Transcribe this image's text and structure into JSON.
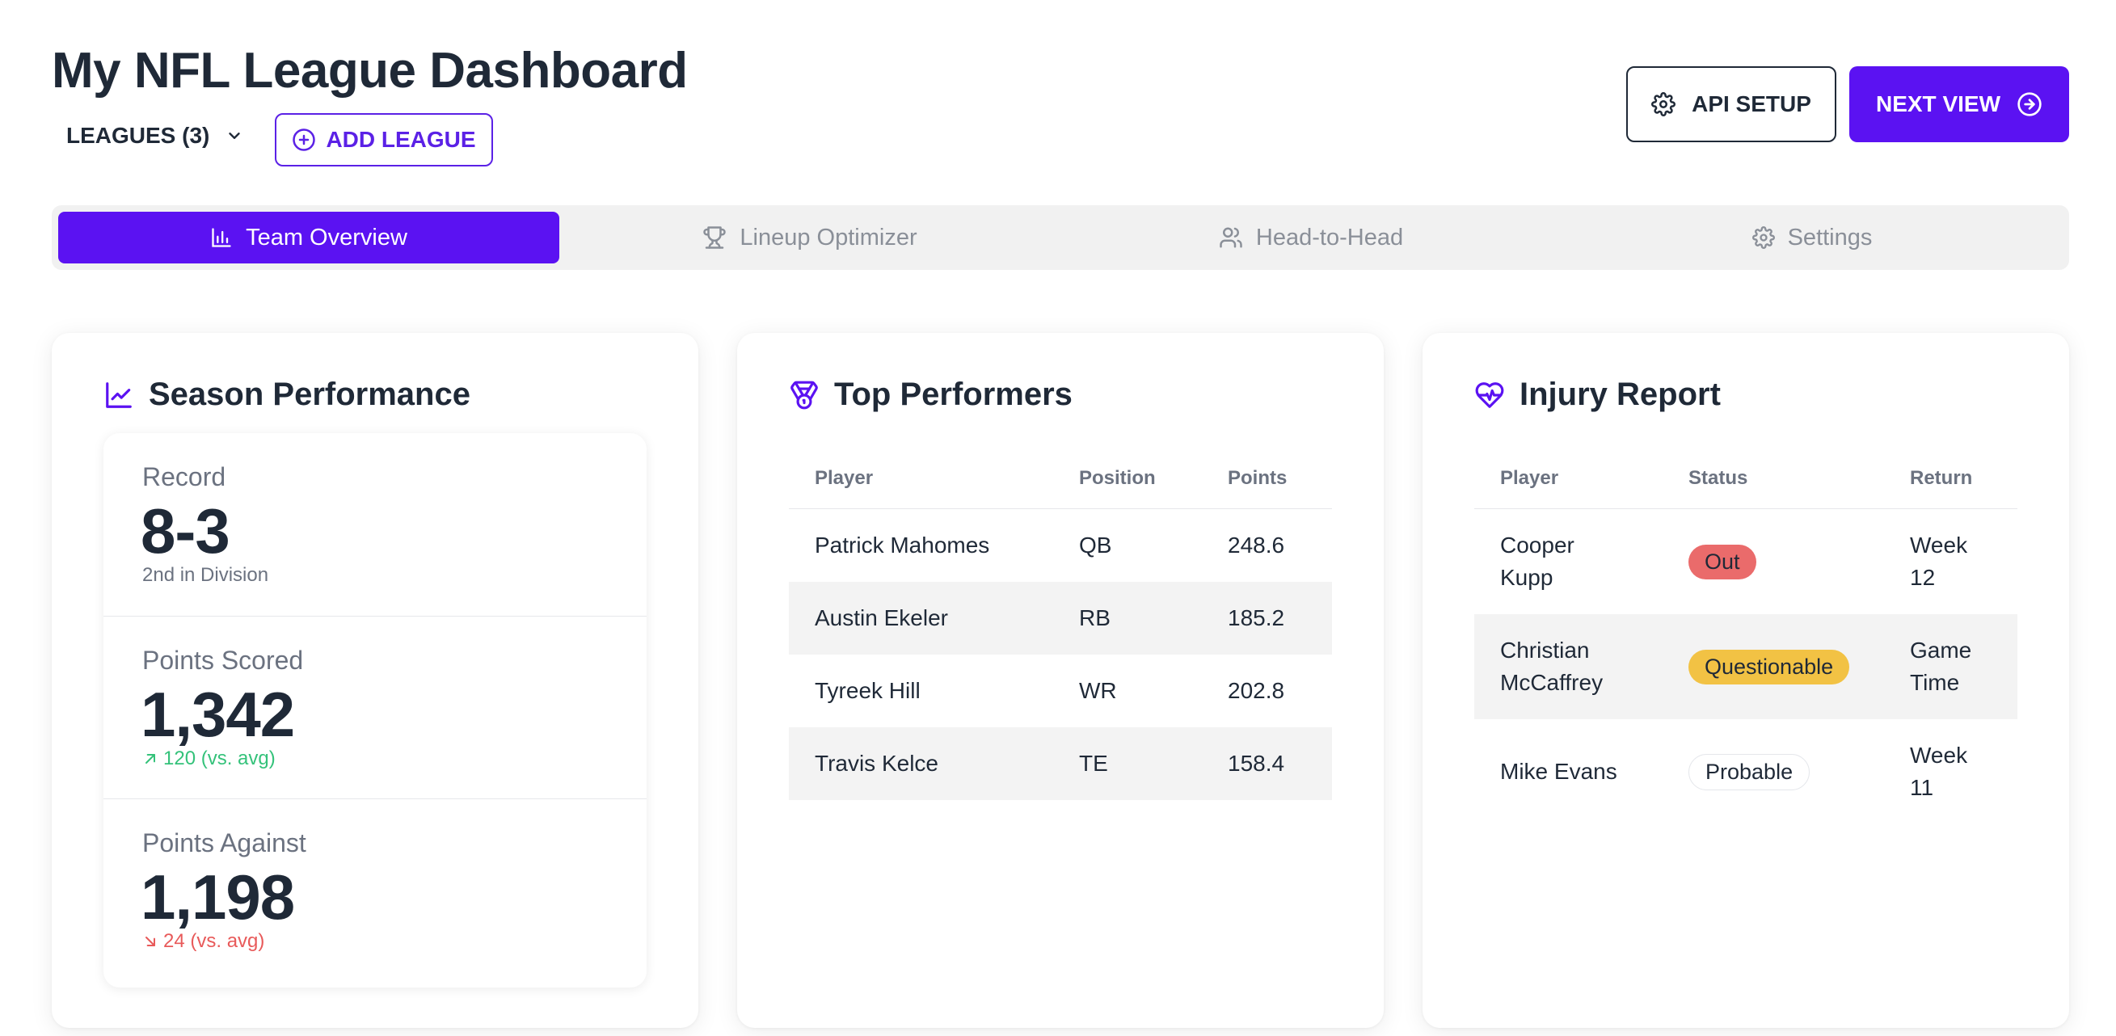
{
  "header": {
    "title": "My NFL League Dashboard",
    "leagues_label": "LEAGUES (3)",
    "add_league_label": "ADD LEAGUE",
    "api_setup_label": "API SETUP",
    "next_view_label": "NEXT VIEW"
  },
  "tabs": [
    {
      "label": "Team Overview",
      "icon": "bar-chart-icon",
      "active": true
    },
    {
      "label": "Lineup Optimizer",
      "icon": "trophy-icon",
      "active": false
    },
    {
      "label": "Head-to-Head",
      "icon": "users-icon",
      "active": false
    },
    {
      "label": "Settings",
      "icon": "gear-icon",
      "active": false
    }
  ],
  "season": {
    "title": "Season Performance",
    "record": {
      "label": "Record",
      "value": "8-3",
      "sub": "2nd in Division"
    },
    "scored": {
      "label": "Points Scored",
      "value": "1,342",
      "sub": "120 (vs. avg)",
      "trend": "up"
    },
    "against": {
      "label": "Points Against",
      "value": "1,198",
      "sub": "24 (vs. avg)",
      "trend": "down"
    }
  },
  "performers": {
    "title": "Top Performers",
    "columns": [
      "Player",
      "Position",
      "Points"
    ],
    "rows": [
      [
        "Patrick Mahomes",
        "QB",
        "248.6"
      ],
      [
        "Austin Ekeler",
        "RB",
        "185.2"
      ],
      [
        "Tyreek Hill",
        "WR",
        "202.8"
      ],
      [
        "Travis Kelce",
        "TE",
        "158.4"
      ]
    ]
  },
  "injury": {
    "title": "Injury Report",
    "columns": [
      "Player",
      "Status",
      "Return"
    ],
    "rows": [
      {
        "player_1": "Cooper",
        "player_2": "Kupp",
        "status": "Out",
        "return_1": "Week",
        "return_2": "12"
      },
      {
        "player_1": "Christian",
        "player_2": "McCaffrey",
        "status": "Questionable",
        "return_1": "Game",
        "return_2": "Time"
      },
      {
        "player_1": "Mike Evans",
        "player_2": "",
        "status": "Probable",
        "return_1": "Week",
        "return_2": "11"
      }
    ]
  },
  "colors": {
    "primary": "#5b12f2",
    "positive": "#34c27a",
    "negative": "#e85a5a",
    "out": "#ea6b6b",
    "questionable": "#f2c244"
  }
}
